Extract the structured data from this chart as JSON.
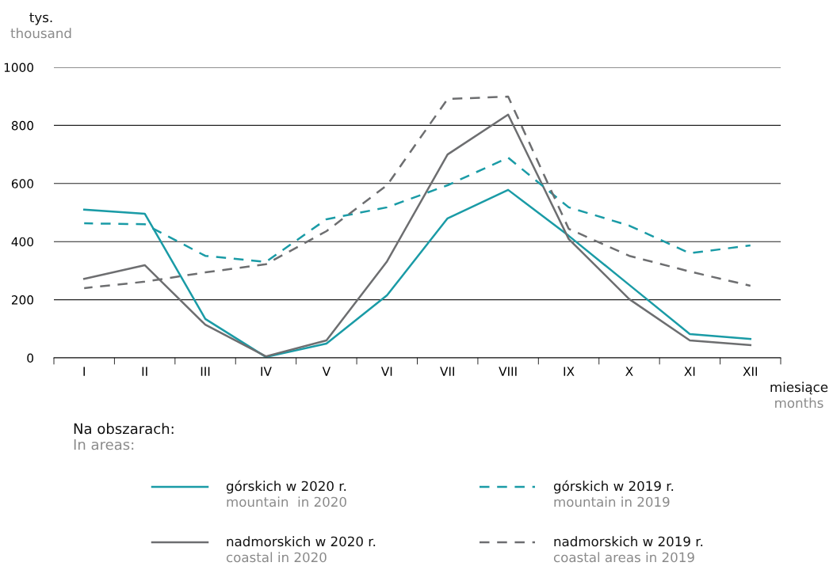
{
  "chart_data": {
    "type": "line",
    "ylabel": "tys.\nthousand",
    "xlabel": "miesiące\nmonths",
    "legend_title": "Na obszarach:\nIn areas:",
    "categories": [
      "I",
      "II",
      "III",
      "IV",
      "V",
      "VI",
      "VII",
      "VIII",
      "IX",
      "X",
      "XI",
      "XII"
    ],
    "ylim": [
      0,
      1000
    ],
    "yticks": [
      0,
      200,
      400,
      600,
      800,
      1000
    ],
    "grid": "y",
    "legend": "bottom",
    "series": [
      {
        "name": "górskich w 2020 r.\nmountain  in 2020",
        "color": "#1a9ba6",
        "line_style": "solid",
        "values": [
          510,
          496,
          134,
          3,
          49,
          215,
          480,
          578,
          420,
          251,
          82,
          65
        ]
      },
      {
        "name": "nadmorskich w 2020 r.\ncoastal in 2020",
        "color": "#6d6e70",
        "line_style": "solid",
        "values": [
          272,
          319,
          114,
          5,
          60,
          332,
          700,
          837,
          409,
          202,
          60,
          44
        ]
      },
      {
        "name": "górskich w 2019 r.\nmountain in 2019",
        "color": "#1a9ba6",
        "line_style": "dashed",
        "values": [
          463,
          460,
          351,
          330,
          477,
          518,
          594,
          689,
          518,
          455,
          360,
          387
        ]
      },
      {
        "name": "nadmorskich w 2019 r.\ncoastal areas in 2019",
        "color": "#6d6e70",
        "line_style": "dashed",
        "values": [
          240,
          262,
          294,
          322,
          436,
          594,
          891,
          899,
          444,
          351,
          297,
          248
        ]
      }
    ]
  }
}
